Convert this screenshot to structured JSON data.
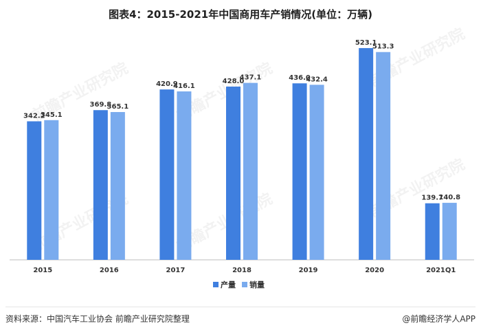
{
  "title": "图表4：2015-2021年中国商用车产销情况(单位：万辆)",
  "source": "资料来源：中国汽车工业协会 前瞻产业研究院整理",
  "brand": "@前瞻经济学人APP",
  "watermark": "前瞻产业研究院",
  "chart_data": {
    "type": "bar",
    "categories": [
      "2015",
      "2016",
      "2017",
      "2018",
      "2019",
      "2020",
      "2021Q1"
    ],
    "series": [
      {
        "name": "产量",
        "values": [
          342.2,
          369.8,
          420.9,
          428.0,
          436.0,
          523.1,
          139.7
        ],
        "color": "#3f7fdf"
      },
      {
        "name": "销量",
        "values": [
          345.1,
          365.1,
          416.1,
          437.1,
          432.4,
          513.3,
          140.8
        ],
        "color": "#7aabee"
      }
    ],
    "ylim": [
      0,
      540
    ],
    "grid": false,
    "legend_position": "bottom"
  }
}
